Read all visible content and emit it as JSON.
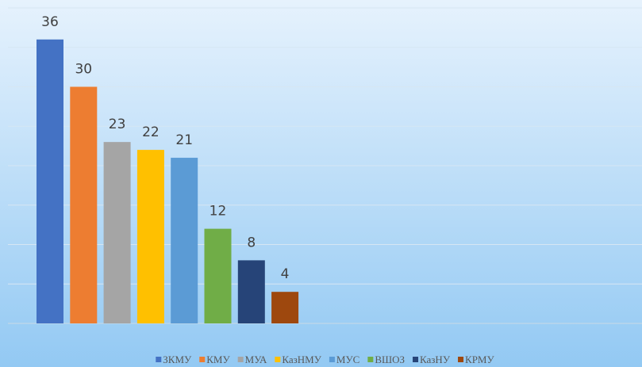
{
  "chart_data": {
    "type": "bar",
    "series": [
      {
        "name": "ЗКМУ",
        "color": "#4472c4",
        "values": [
          36
        ]
      },
      {
        "name": "КМУ",
        "color": "#ed7d31",
        "values": [
          30
        ]
      },
      {
        "name": "МУА",
        "color": "#a5a5a5",
        "values": [
          23
        ]
      },
      {
        "name": "КазНМУ",
        "color": "#ffc000",
        "values": [
          22
        ]
      },
      {
        "name": "МУС",
        "color": "#5b9bd5",
        "values": [
          21
        ]
      },
      {
        "name": "ВШОЗ",
        "color": "#70ad47",
        "values": [
          12
        ]
      },
      {
        "name": "КазНУ",
        "color": "#264478",
        "values": [
          8
        ]
      },
      {
        "name": "КРМУ",
        "color": "#9e480e",
        "values": [
          4
        ]
      }
    ],
    "ylim": [
      0,
      40
    ],
    "yticks": [
      0,
      5,
      10,
      15,
      20,
      25,
      30,
      35,
      40
    ],
    "grid": true,
    "data_labels": true,
    "legend": "bottom"
  }
}
